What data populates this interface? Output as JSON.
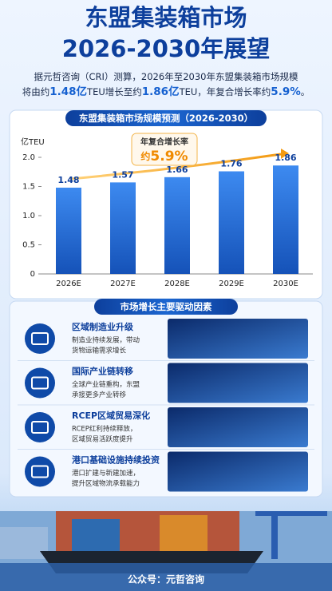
{
  "header": {
    "title_lines": [
      "东盟集装箱市场",
      "2026-2030年展望"
    ]
  },
  "intro": [
    [
      "据元哲咨询（CRI）测算，2026年至2030年东盟集装箱市场规模"
    ],
    [
      "将由约",
      "1.48亿",
      "TEU增长至约",
      "1.86亿",
      "TEU，年复合增长率约",
      "5.9%",
      "。"
    ]
  ],
  "chart_data": {
    "type": "bar",
    "title": "东盟集装箱市场规模预测（2026-2030）",
    "y_label": "亿TEU",
    "categories": [
      "2026E",
      "2027E",
      "2028E",
      "2029E",
      "2030E"
    ],
    "values": [
      1.48,
      1.57,
      1.66,
      1.76,
      1.86
    ],
    "color": "#1f6fd6",
    "ylim": [
      0,
      2.0
    ],
    "yticks": [
      0,
      0.5,
      {
        "value": 1.0,
        "label": "1.0"
      },
      1.5,
      {
        "value": 2.0,
        "label": "2.0"
      }
    ],
    "grid": false,
    "annotation": {
      "label": "年复合增长率",
      "value_prefix": "约",
      "value": "5.9%"
    }
  },
  "drivers": {
    "title": "市场增长主要驱动因素",
    "items": [
      {
        "title": "区域制造业升级",
        "desc": [
          "制造业持续发展，带动",
          "货物运输需求增长"
        ]
      },
      {
        "title": "国际产业链转移",
        "desc": [
          "全球产业链重构，东盟",
          "承接更多产业转移"
        ]
      },
      {
        "title": "RCEP区域贸易深化",
        "desc": [
          "RCEP红利持续释放，",
          "区域贸易活跃度提升"
        ]
      },
      {
        "title": "港口基础设施持续投资",
        "desc": [
          "港口扩建与新建加速，",
          "提升区域物流承载能力"
        ]
      }
    ]
  },
  "footer": "公众号：元哲咨询"
}
